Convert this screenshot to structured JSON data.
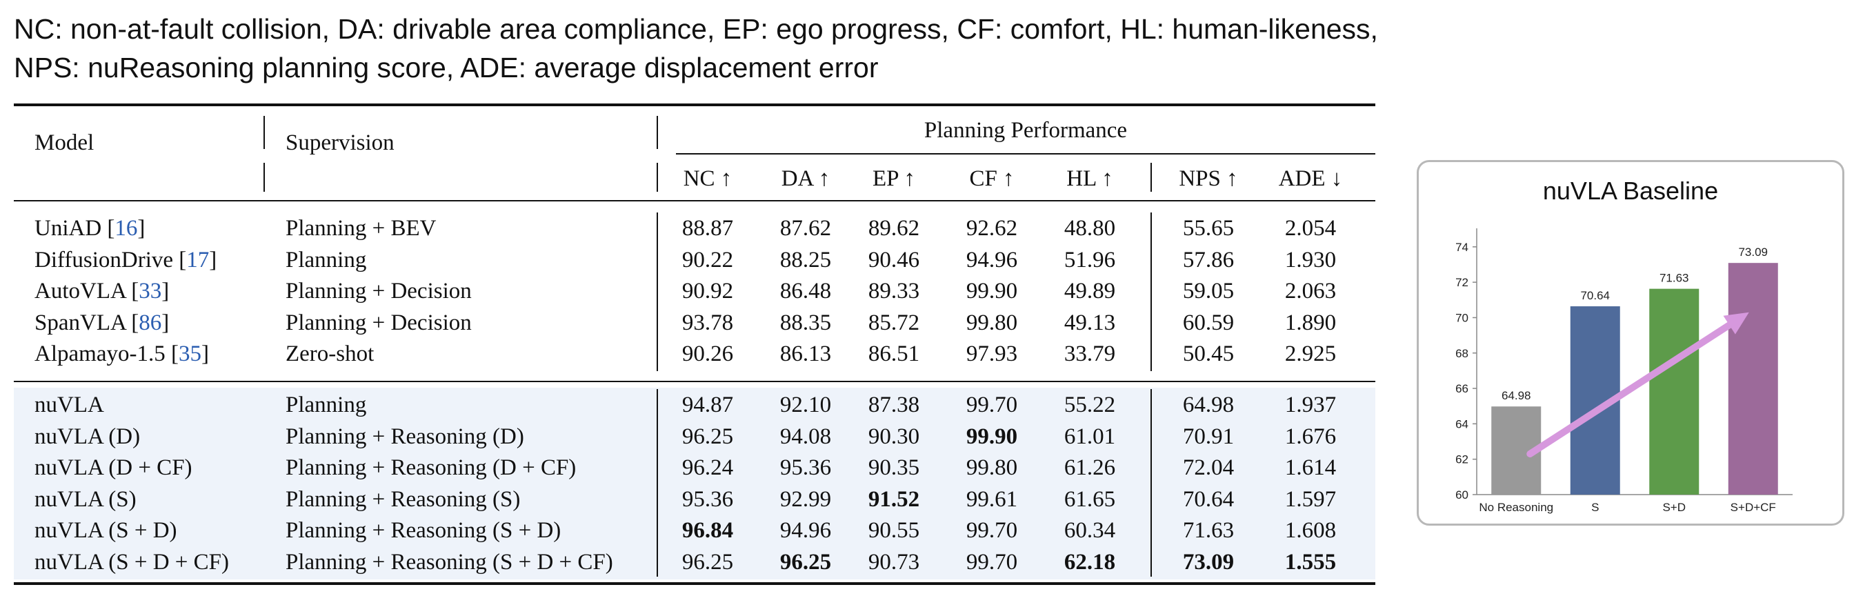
{
  "caption": {
    "line1": "NC: non-at-fault collision, DA: drivable area compliance, EP: ego progress, CF: comfort, HL: human-likeness,",
    "line2": "NPS: nuReasoning planning score, ADE: average displacement error"
  },
  "table": {
    "headers": {
      "model": "Model",
      "supervision": "Supervision",
      "group": "Planning Performance",
      "metrics": [
        "NC ↑",
        "DA ↑",
        "EP ↑",
        "CF ↑",
        "HL ↑",
        "NPS ↑",
        "ADE ↓"
      ]
    },
    "baseline_rows": [
      {
        "model": "UniAD [",
        "ref": "16",
        "model_end": "]",
        "supervision": "Planning + BEV",
        "values": [
          "88.87",
          "87.62",
          "89.62",
          "92.62",
          "48.80",
          "55.65",
          "2.054"
        ],
        "bold": []
      },
      {
        "model": "DiffusionDrive [",
        "ref": "17",
        "model_end": "]",
        "supervision": "Planning",
        "values": [
          "90.22",
          "88.25",
          "90.46",
          "94.96",
          "51.96",
          "57.86",
          "1.930"
        ],
        "bold": []
      },
      {
        "model": "AutoVLA [",
        "ref": "33",
        "model_end": "]",
        "supervision": "Planning + Decision",
        "values": [
          "90.92",
          "86.48",
          "89.33",
          "99.90",
          "49.89",
          "59.05",
          "2.063"
        ],
        "bold": []
      },
      {
        "model": "SpanVLA [",
        "ref": "86",
        "model_end": "]",
        "supervision": "Planning + Decision",
        "values": [
          "93.78",
          "88.35",
          "85.72",
          "99.80",
          "49.13",
          "60.59",
          "1.890"
        ],
        "bold": []
      },
      {
        "model": "Alpamayo-1.5 [",
        "ref": "35",
        "model_end": "]",
        "supervision": "Zero-shot",
        "values": [
          "90.26",
          "86.13",
          "86.51",
          "97.93",
          "33.79",
          "50.45",
          "2.925"
        ],
        "bold": []
      }
    ],
    "ours_rows": [
      {
        "model": "nuVLA",
        "supervision": "Planning",
        "values": [
          "94.87",
          "92.10",
          "87.38",
          "99.70",
          "55.22",
          "64.98",
          "1.937"
        ],
        "bold": []
      },
      {
        "model": "nuVLA (D)",
        "supervision": "Planning + Reasoning (D)",
        "values": [
          "96.25",
          "94.08",
          "90.30",
          "99.90",
          "61.01",
          "70.91",
          "1.676"
        ],
        "bold": [
          3
        ]
      },
      {
        "model": "nuVLA (D + CF)",
        "supervision": "Planning + Reasoning (D + CF)",
        "values": [
          "96.24",
          "95.36",
          "90.35",
          "99.80",
          "61.26",
          "72.04",
          "1.614"
        ],
        "bold": []
      },
      {
        "model": "nuVLA (S)",
        "supervision": "Planning + Reasoning (S)",
        "values": [
          "95.36",
          "92.99",
          "91.52",
          "99.61",
          "61.65",
          "70.64",
          "1.597"
        ],
        "bold": [
          2
        ]
      },
      {
        "model": "nuVLA (S + D)",
        "supervision": "Planning + Reasoning (S + D)",
        "values": [
          "96.84",
          "94.96",
          "90.55",
          "99.70",
          "60.34",
          "71.63",
          "1.608"
        ],
        "bold": [
          0
        ]
      },
      {
        "model": "nuVLA (S + D + CF)",
        "supervision": "Planning + Reasoning (S + D + CF)",
        "values": [
          "96.25",
          "96.25",
          "90.73",
          "99.70",
          "62.18",
          "73.09",
          "1.555"
        ],
        "bold": [
          1,
          4,
          5,
          6
        ]
      }
    ]
  },
  "chart_data": {
    "type": "bar",
    "title": "nuVLA Baseline",
    "categories": [
      "No Reasoning",
      "S",
      "S+D",
      "S+D+CF"
    ],
    "values": [
      64.98,
      70.64,
      71.63,
      73.09
    ],
    "data_labels": [
      "64.98",
      "70.64",
      "71.63",
      "73.09"
    ],
    "bar_colors": [
      "#999999",
      "#4f6b9b",
      "#5d9b4a",
      "#9c6a9a"
    ],
    "ylim": [
      60,
      74.5
    ],
    "yticks": [
      "60",
      "62",
      "64",
      "66",
      "68",
      "70",
      "72",
      "74"
    ],
    "grid": false,
    "annotation": "upward trend arrow from No Reasoning to S+D+CF",
    "arrow_color": "#d698dd"
  }
}
